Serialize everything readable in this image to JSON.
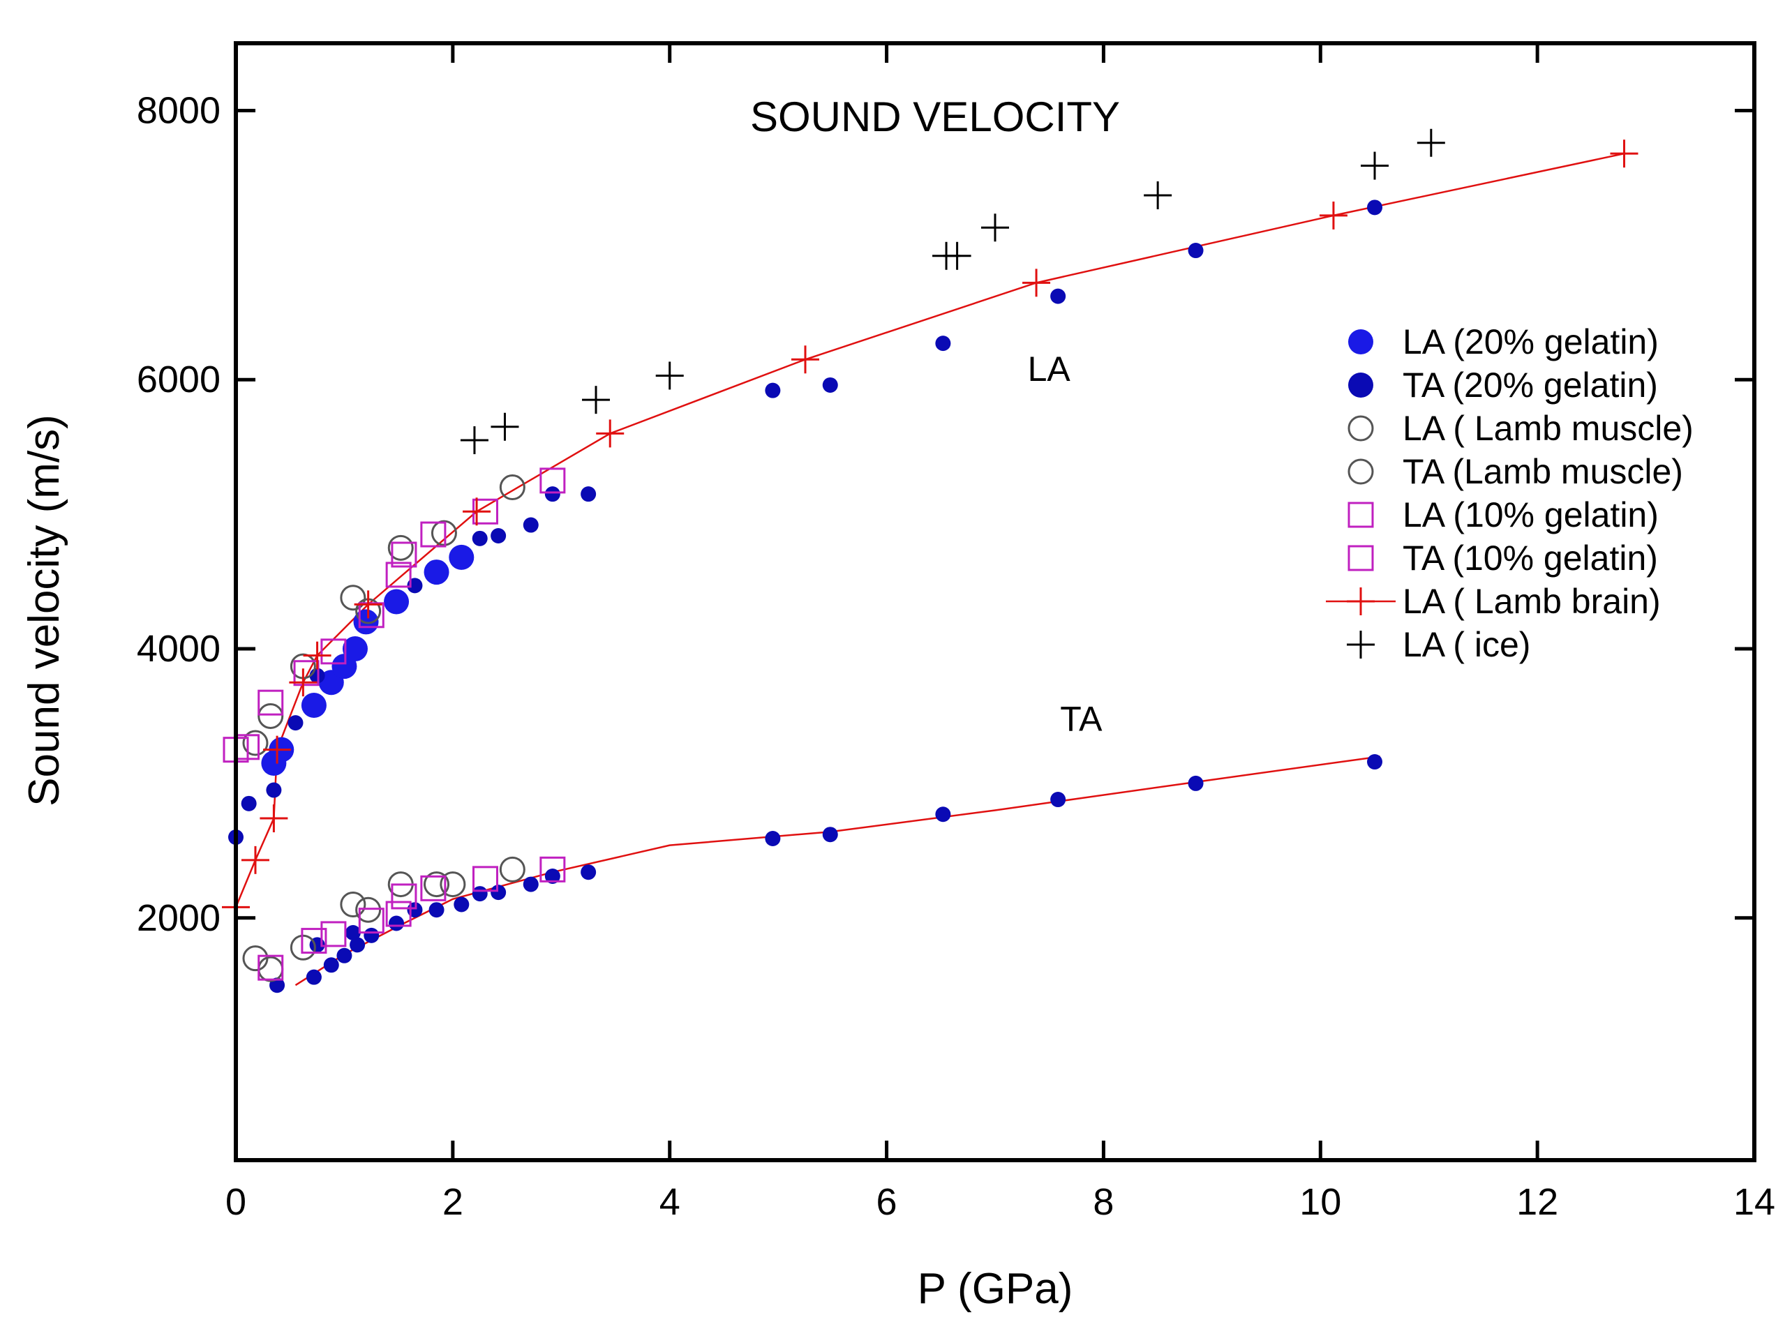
{
  "chart_data": {
    "type": "scatter",
    "title": "SOUND VELOCITY",
    "xlabel": "P (GPa)",
    "ylabel": "Sound velocity (m/s)",
    "xlim": [
      0,
      14
    ],
    "ylim": [
      200,
      8500
    ],
    "xticks": [
      0,
      2,
      4,
      6,
      8,
      10,
      12,
      14
    ],
    "yticks": [
      2000,
      4000,
      6000,
      8000
    ],
    "legend_position": "right",
    "grid": false,
    "annotations": [
      {
        "text": "LA",
        "x": 7.3,
        "y": 5990
      },
      {
        "text": "TA",
        "x": 7.6,
        "y": 3390
      }
    ],
    "series": [
      {
        "name": "LA (20% gelatin)",
        "marker": "filled-circle-large",
        "color": "#1a1ae6",
        "points": [
          [
            0.35,
            3150
          ],
          [
            0.42,
            3250
          ],
          [
            0.72,
            3580
          ],
          [
            0.88,
            3750
          ],
          [
            1.0,
            3870
          ],
          [
            1.1,
            4000
          ],
          [
            1.2,
            4200
          ],
          [
            1.48,
            4350
          ],
          [
            1.85,
            4570
          ],
          [
            2.08,
            4680
          ]
        ]
      },
      {
        "name": "TA (20% gelatin)",
        "marker": "filled-circle",
        "color": "#0a0ab4",
        "points": [
          [
            0.0,
            2600
          ],
          [
            0.12,
            2850
          ],
          [
            0.35,
            2950
          ],
          [
            0.55,
            3450
          ],
          [
            0.75,
            3800
          ],
          [
            1.65,
            4470
          ],
          [
            2.25,
            4820
          ],
          [
            2.42,
            4840
          ],
          [
            2.72,
            4920
          ],
          [
            2.92,
            5150
          ],
          [
            3.25,
            5150
          ],
          [
            4.95,
            5920
          ],
          [
            5.48,
            5960
          ],
          [
            6.52,
            6270
          ],
          [
            7.58,
            6620
          ],
          [
            8.85,
            6960
          ],
          [
            10.5,
            7280
          ],
          [
            0.38,
            1500
          ],
          [
            0.72,
            1560
          ],
          [
            0.88,
            1650
          ],
          [
            1.0,
            1720
          ],
          [
            1.12,
            1800
          ],
          [
            1.25,
            1870
          ],
          [
            1.48,
            1960
          ],
          [
            1.85,
            2060
          ],
          [
            2.08,
            2100
          ],
          [
            0.75,
            1800
          ],
          [
            1.08,
            1890
          ],
          [
            1.65,
            2060
          ],
          [
            2.25,
            2180
          ],
          [
            2.42,
            2190
          ],
          [
            2.72,
            2250
          ],
          [
            2.92,
            2310
          ],
          [
            3.25,
            2340
          ],
          [
            4.95,
            2590
          ],
          [
            5.48,
            2620
          ],
          [
            6.52,
            2770
          ],
          [
            7.58,
            2880
          ],
          [
            8.85,
            3000
          ],
          [
            10.5,
            3160
          ]
        ]
      },
      {
        "name": "LA ( Lamb muscle)",
        "marker": "open-circle",
        "color": "#555555",
        "points": [
          [
            0.18,
            3300
          ],
          [
            0.32,
            3500
          ],
          [
            0.62,
            3870
          ],
          [
            1.08,
            4380
          ],
          [
            1.22,
            4280
          ],
          [
            1.52,
            4750
          ],
          [
            1.92,
            4860
          ],
          [
            2.55,
            5200
          ]
        ]
      },
      {
        "name": "TA (Lamb muscle)",
        "marker": "open-circle",
        "color": "#555555",
        "points": [
          [
            0.18,
            1700
          ],
          [
            0.32,
            1620
          ],
          [
            0.62,
            1780
          ],
          [
            1.08,
            2100
          ],
          [
            1.22,
            2060
          ],
          [
            1.52,
            2250
          ],
          [
            1.85,
            2250
          ],
          [
            2.0,
            2250
          ],
          [
            2.55,
            2360
          ]
        ]
      },
      {
        "name": "LA (10% gelatin)",
        "marker": "open-square",
        "color": "#c020c0",
        "points": [
          [
            0.0,
            3250
          ],
          [
            0.1,
            3270
          ],
          [
            0.32,
            3600
          ],
          [
            0.65,
            3820
          ],
          [
            0.9,
            3980
          ],
          [
            1.25,
            4250
          ],
          [
            1.5,
            4550
          ],
          [
            1.55,
            4700
          ],
          [
            1.82,
            4850
          ],
          [
            2.3,
            5020
          ],
          [
            2.92,
            5250
          ]
        ]
      },
      {
        "name": "TA (10% gelatin)",
        "marker": "open-square",
        "color": "#c020c0",
        "points": [
          [
            0.32,
            1630
          ],
          [
            0.72,
            1830
          ],
          [
            0.9,
            1880
          ],
          [
            1.25,
            1980
          ],
          [
            1.5,
            2030
          ],
          [
            1.55,
            2160
          ],
          [
            1.82,
            2220
          ],
          [
            2.3,
            2290
          ],
          [
            2.92,
            2360
          ]
        ]
      },
      {
        "name": "LA ( Lamb brain)",
        "marker": "plus-line",
        "color": "#e01010",
        "points": [
          [
            0.0,
            2080
          ],
          [
            0.18,
            2430
          ],
          [
            0.35,
            2740
          ],
          [
            0.38,
            3250
          ],
          [
            0.62,
            3750
          ],
          [
            0.75,
            3950
          ],
          [
            1.22,
            4330
          ],
          [
            2.22,
            5020
          ],
          [
            3.45,
            5600
          ],
          [
            5.25,
            6150
          ],
          [
            7.38,
            6720
          ],
          [
            10.12,
            7220
          ],
          [
            12.8,
            7680
          ]
        ]
      },
      {
        "name": "LA ( ice)",
        "marker": "plus",
        "color": "#000000",
        "points": [
          [
            2.2,
            5550
          ],
          [
            2.48,
            5650
          ],
          [
            3.32,
            5850
          ],
          [
            4.0,
            6030
          ],
          [
            6.55,
            6920
          ],
          [
            6.65,
            6920
          ],
          [
            7.0,
            7130
          ],
          [
            8.5,
            7370
          ],
          [
            10.5,
            7590
          ],
          [
            11.02,
            7760
          ]
        ]
      },
      {
        "name": "",
        "marker": "line",
        "color": "#e01010",
        "points": [
          [
            0.55,
            1500
          ],
          [
            1.0,
            1730
          ],
          [
            1.55,
            1960
          ],
          [
            2.0,
            2140
          ],
          [
            2.92,
            2340
          ],
          [
            4.0,
            2540
          ],
          [
            5.48,
            2640
          ],
          [
            7.0,
            2800
          ],
          [
            8.85,
            3010
          ],
          [
            10.55,
            3200
          ]
        ]
      }
    ]
  }
}
